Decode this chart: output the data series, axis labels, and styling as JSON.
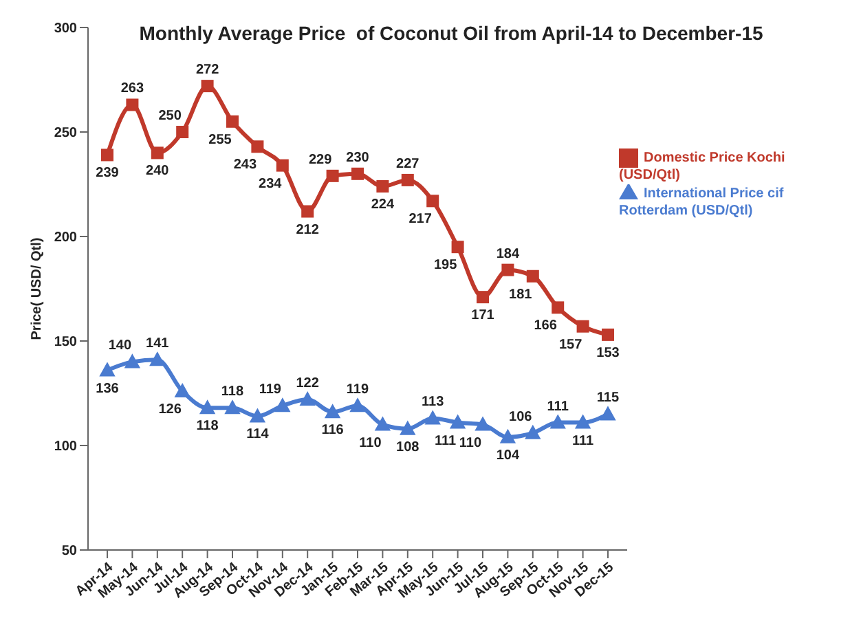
{
  "chart_data": {
    "type": "line",
    "title": "Monthly Average Price  of Coconut Oil from April-14 to December-15",
    "ylabel": "Price( USD/ Qtl)",
    "categories": [
      "Apr-14",
      "May-14",
      "Jun-14",
      "Jul-14",
      "Aug-14",
      "Sep-14",
      "Oct-14",
      "Nov-14",
      "Dec-14",
      "Jan-15",
      "Feb-15",
      "Mar-15",
      "Apr-15",
      "May-15",
      "Jun-15",
      "Jul-15",
      "Aug-15",
      "Sep-15",
      "Oct-15",
      "Nov-15",
      "Dec-15"
    ],
    "series": [
      {
        "name": "International Price cif Rotterdam (USD/Qtl)",
        "color": "#4a7bd0",
        "marker": "triangle",
        "values": [
          136,
          140,
          141,
          126,
          118,
          118,
          114,
          119,
          122,
          116,
          119,
          110,
          108,
          113,
          111,
          110,
          104,
          106,
          111,
          111,
          115
        ]
      },
      {
        "name": "Domestic Price  Kochi (USD/Qtl)",
        "color": "#c0392b",
        "marker": "square",
        "values": [
          239,
          263,
          240,
          250,
          272,
          255,
          243,
          234,
          212,
          229,
          230,
          224,
          227,
          217,
          195,
          171,
          184,
          181,
          166,
          157,
          153
        ]
      }
    ],
    "ylim": [
      50,
      300
    ],
    "yticks": [
      50,
      100,
      150,
      200,
      250,
      300
    ],
    "grid": false,
    "legend": "top right",
    "data_labels": true
  }
}
